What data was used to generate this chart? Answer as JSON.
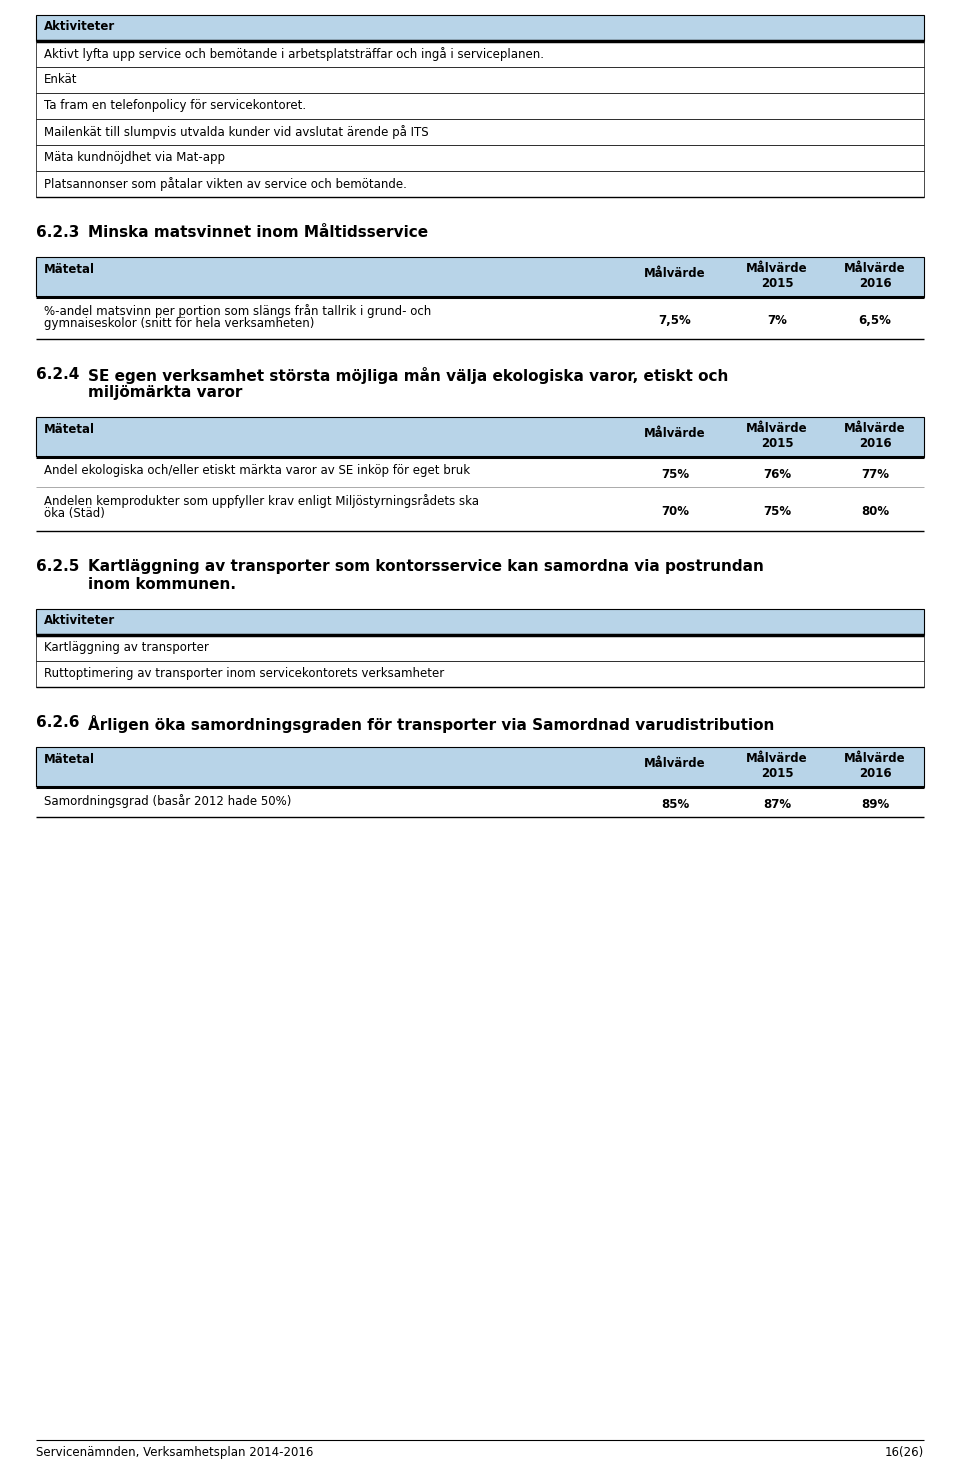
{
  "page_bg": "#ffffff",
  "table_header_bg": "#b8d4e8",
  "border_color": "#000000",
  "text_color": "#000000",
  "section1": {
    "title": "Aktiviteter",
    "rows": [
      "Aktivt lyfta upp service och bemötande i arbetsplatsträffar och ingå i serviceplanen.",
      "Enkät",
      "Ta fram en telefonpolicy för servicekontoret.",
      "Mailenkät till slumpvis utvalda kunder vid avslutat ärende på ITS",
      "Mäta kundnöjdhet via Mat-app",
      "Platsannonser som påtalar vikten av service och bemötande."
    ]
  },
  "section623": {
    "number": "6.2.3",
    "title": "Minska matsvinnet inom Måltidsservice",
    "rows": [
      {
        "label1": "%-andel matsvinn per portion som slängs från tallrik i grund- och",
        "label2": "gymnaiseskolor (snitt för hela verksamheten)",
        "col1": "7,5%",
        "col2": "7%",
        "col3": "6,5%"
      }
    ]
  },
  "section624": {
    "number": "6.2.4",
    "title1": "SE egen verksamhet största möjliga mån välja ekologiska varor, etiskt och",
    "title2": "miljömärkta varor",
    "rows": [
      {
        "label1": "Andel ekologiska och/eller etiskt märkta varor av SE inköp för eget bruk",
        "label2": "",
        "col1": "75%",
        "col2": "76%",
        "col3": "77%"
      },
      {
        "label1": "Andelen kemprodukter som uppfyller krav enligt Miljöstyrningsrådets ska",
        "label2": "öka (Städ)",
        "col1": "70%",
        "col2": "75%",
        "col3": "80%"
      }
    ]
  },
  "section625": {
    "number": "6.2.5",
    "title1": "Kartläggning av transporter som kontorsservice kan samordna via postrundan",
    "title2": "inom kommunen.",
    "aktiviteter_rows": [
      "Kartläggning av transporter",
      "Ruttoptimering av transporter inom servicekontorets verksamheter"
    ]
  },
  "section626": {
    "number": "6.2.6",
    "title": "Årligen öka samordningsgraden för transporter via Samordnad varudistribution",
    "rows": [
      {
        "label1": "Samordningsgrad (basår 2012 hade 50%)",
        "label2": "",
        "col1": "85%",
        "col2": "87%",
        "col3": "89%"
      }
    ]
  },
  "footer_text": "Servicenämnden, Verksamhetsplan 2014-2016",
  "footer_page": "16(26)"
}
